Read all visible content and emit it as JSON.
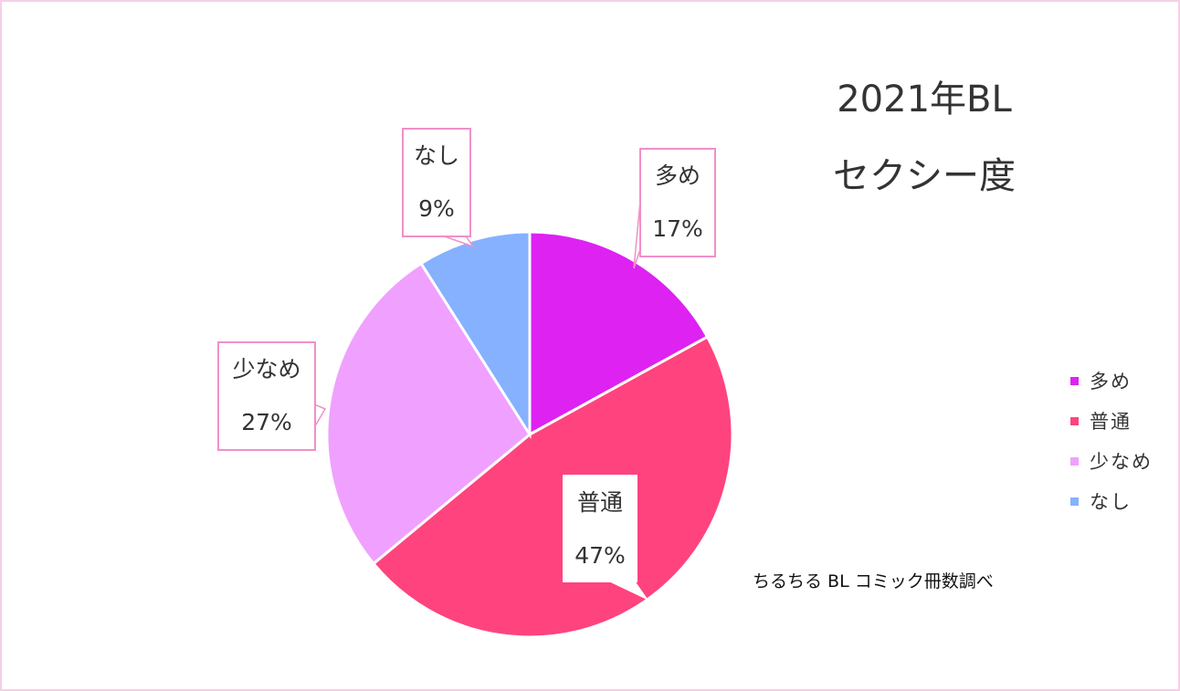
{
  "chart_data": {
    "type": "pie",
    "title_lines": [
      "2021年BL",
      "セクシー度"
    ],
    "slices": [
      {
        "label": "多め",
        "value": 17,
        "value_label": "17%",
        "color": "#dd22f2"
      },
      {
        "label": "普通",
        "value": 47,
        "value_label": "47%",
        "color": "#ff437e"
      },
      {
        "label": "少なめ",
        "value": 27,
        "value_label": "27%",
        "color": "#f0a0ff"
      },
      {
        "label": "なし",
        "value": 9,
        "value_label": "9%",
        "color": "#85b1ff"
      }
    ],
    "legend": {
      "placement": "right",
      "entries": [
        "多め",
        "普通",
        "少なめ",
        "なし"
      ]
    },
    "source": "ちるちる BL コミック冊数調べ"
  }
}
